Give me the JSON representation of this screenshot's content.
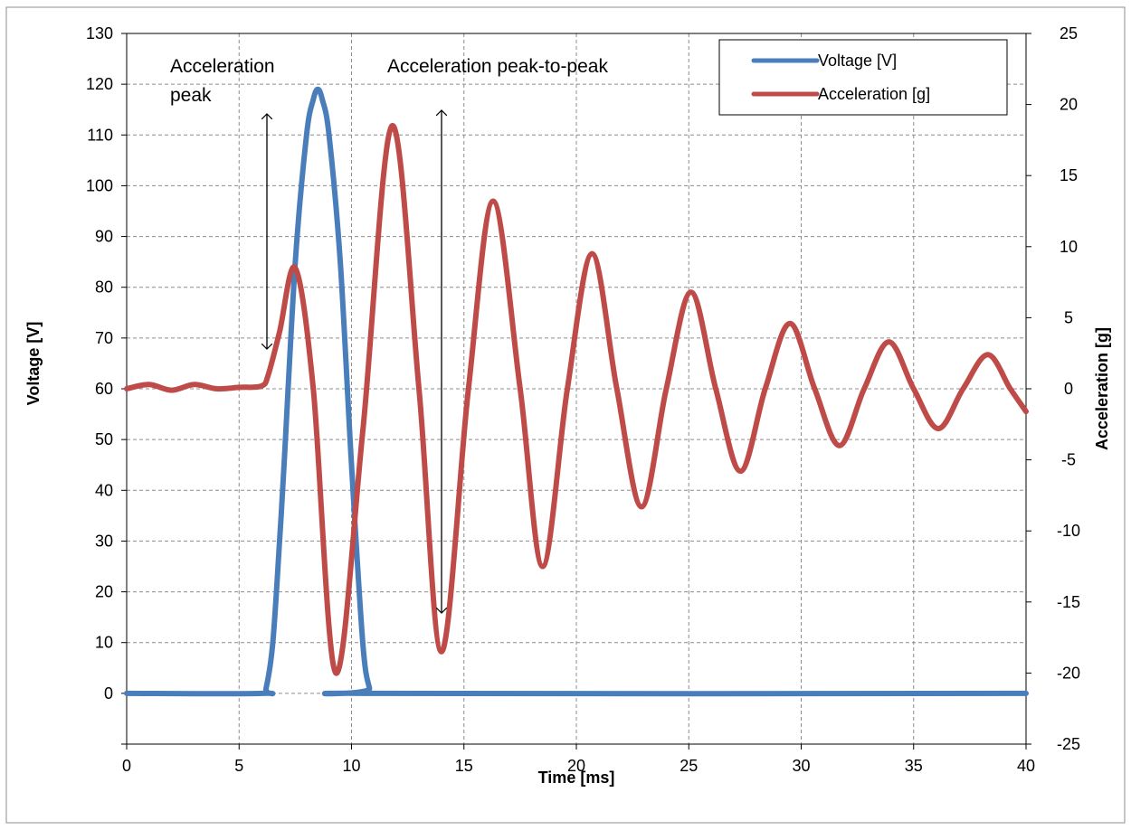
{
  "chart_data": {
    "type": "line",
    "xlabel": "Time [ms]",
    "ylabel": "Voltage [V]",
    "y2label": "Acceleration  [g]",
    "xlim": [
      0,
      40
    ],
    "ylim": [
      -10,
      130
    ],
    "y2lim": [
      -25,
      25
    ],
    "xticks": [
      0,
      5,
      10,
      15,
      20,
      25,
      30,
      35,
      40
    ],
    "yticks": [
      0,
      10,
      20,
      30,
      40,
      50,
      60,
      70,
      80,
      90,
      100,
      110,
      120,
      130
    ],
    "y2ticks": [
      -25,
      -20,
      -15,
      -10,
      -5,
      0,
      5,
      10,
      15,
      20,
      25
    ],
    "grid": true,
    "legend": "top-right",
    "series": [
      {
        "name": "Voltage [V]",
        "axis": "left",
        "color": "#4a7ebb",
        "x": [
          0,
          6.0,
          6.2,
          6.5,
          6.8,
          7.0,
          7.5,
          8.0,
          8.3,
          8.5,
          8.7,
          9.0,
          9.5,
          10.0,
          10.5,
          10.8,
          11.0,
          40
        ],
        "y": [
          0,
          0,
          1,
          10,
          30,
          45,
          85,
          110,
          117,
          119,
          117,
          110,
          85,
          45,
          10,
          1,
          0,
          0
        ]
      },
      {
        "name": "Acceleration [g]",
        "axis": "right",
        "color": "#be4b48",
        "x": [
          0,
          1,
          2,
          3,
          4,
          5,
          6,
          6.3,
          6.8,
          7.5,
          8.3,
          9.3,
          10.5,
          11.8,
          13.0,
          14.0,
          15.2,
          16.3,
          17.5,
          18.5,
          19.6,
          20.7,
          21.8,
          22.9,
          24.0,
          25.1,
          26.2,
          27.3,
          28.4,
          29.5,
          30.6,
          31.7,
          32.8,
          33.9,
          35.0,
          36.1,
          37.2,
          38.3,
          39.3,
          40
        ],
        "y": [
          0,
          0.3,
          -0.1,
          0.3,
          0,
          0.1,
          0.2,
          1,
          4,
          8.5,
          0,
          -20,
          -3,
          18.5,
          0,
          -18.5,
          0,
          13.2,
          0,
          -12.5,
          0,
          9.5,
          0,
          -8.3,
          0,
          6.8,
          0,
          -5.8,
          0,
          4.6,
          0,
          -4,
          0,
          3.3,
          0,
          -2.8,
          0,
          2.4,
          0,
          -1.6
        ]
      }
    ],
    "annotations": {
      "peak_line1": "Acceleration",
      "peak_line2": "peak",
      "p2p": "Acceleration peak-to-peak"
    }
  }
}
